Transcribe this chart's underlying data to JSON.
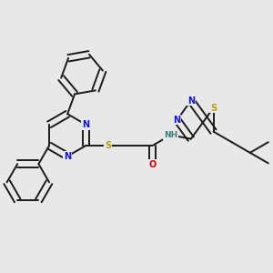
{
  "bg_color": "#e8e8e8",
  "bond_color": "#1a1a1a",
  "bond_lw": 1.4,
  "dbo": 0.012,
  "atom_colors": {
    "N": "#1414d4",
    "S": "#b8a000",
    "O": "#d40000",
    "H": "#3a8080",
    "C": "#1a1a1a"
  },
  "fs": 7.0
}
